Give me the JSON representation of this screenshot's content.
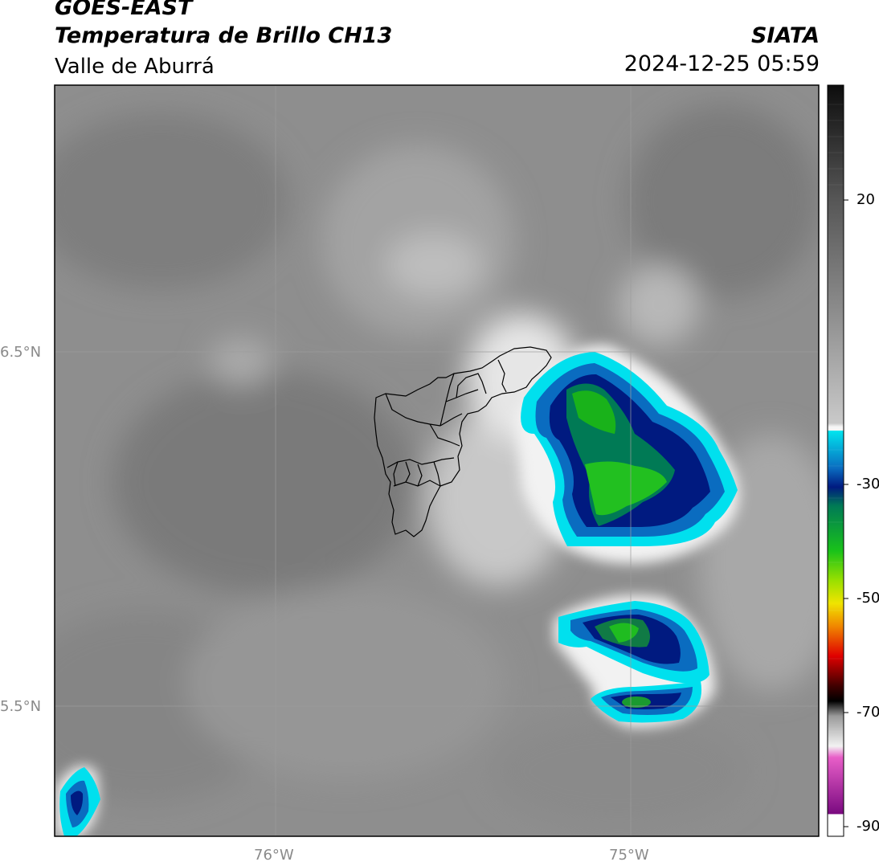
{
  "header": {
    "satellite": "GOES-EAST",
    "product": "Temperatura de Brillo CH13",
    "region": "Valle de Aburrá",
    "organization": "SIATA",
    "datetime": "2024-12-25 05:59"
  },
  "axes": {
    "lat_ticks": [
      "6.5°N",
      "5.5°N"
    ],
    "lon_ticks": [
      "76°W",
      "75°W"
    ]
  },
  "colorbar": {
    "ticks": [
      "20",
      "-30",
      "-50",
      "-70",
      "-90"
    ],
    "colors": {
      "warm_top": "#111111",
      "gray_mid": "#8c8c8c",
      "white": "#f4f4f4",
      "cyan": "#00e5ef",
      "blue": "#0a6cc0",
      "navy": "#001a80",
      "teal": "#007a55",
      "green": "#19c21a",
      "yellow": "#f0e400",
      "orange": "#f08800",
      "red": "#e00000",
      "dark_red": "#400000",
      "pink": "#e85ec8",
      "purple": "#7a0a80"
    }
  }
}
